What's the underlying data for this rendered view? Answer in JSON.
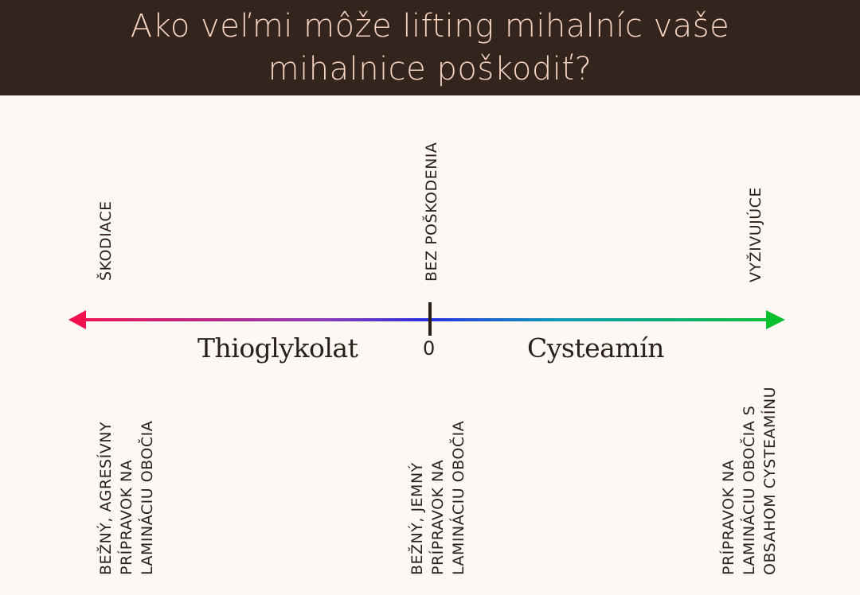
{
  "title": {
    "line1": "Ako veľmi môže lifting mihalníc vaše",
    "line2": "mihalnice poškodiť?"
  },
  "scale": {
    "top": {
      "left": "ŠKODIACE",
      "center": "BEZ POŠKODENIA",
      "right": "VYŽIVUJÚCE"
    },
    "axis": {
      "left_label": "Thioglykolat",
      "center_label": "0",
      "right_label": "Cysteamín"
    },
    "bottom": {
      "left": [
        "BEŽNÝ, AGRESÍVNY",
        "PRÍPRAVOK NA",
        "LAMINÁCIU OBOČIA"
      ],
      "center": [
        "BEŽNÝ, JEMNÝ",
        "PRÍPRAVOK NA",
        "LAMINÁCIU OBOČIA"
      ],
      "right": [
        "PRÍPRAVOK NA",
        "LAMINÁCIU OBOČIA S",
        "OBSAHOM CYSTEAMÍNU"
      ]
    }
  },
  "colors": {
    "header_bg": "#33241d",
    "title_text": "#f6d3bf",
    "gradient": [
      "#f3104e",
      "#7a3fc8",
      "#1c3ad6",
      "#14a8c0",
      "#0ac02c"
    ]
  }
}
